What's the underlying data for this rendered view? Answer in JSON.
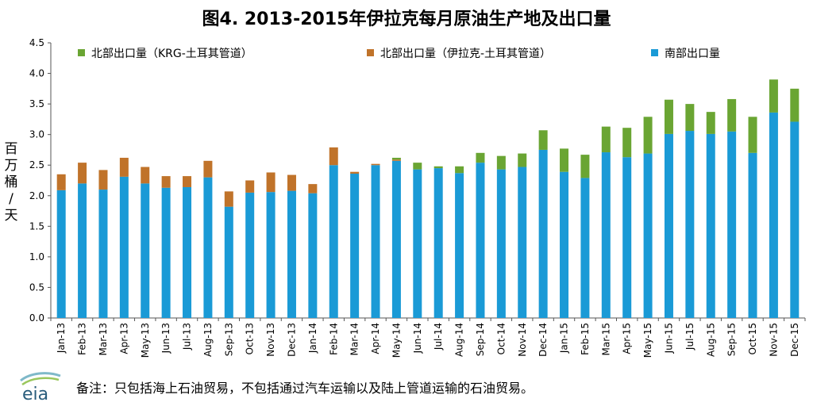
{
  "chart_data": {
    "type": "bar",
    "stacked": true,
    "title": "图4. 2013-2015年伊拉克每月原油生产地及出口量",
    "ylabel": "百万桶/天",
    "ylabel_chars": [
      "百",
      "万",
      "桶",
      "/",
      "天"
    ],
    "ylim": [
      0,
      4.5
    ],
    "yticks": [
      "0.0",
      "0.5",
      "1.0",
      "1.5",
      "2.0",
      "2.5",
      "3.0",
      "3.5",
      "4.0",
      "4.5"
    ],
    "grid": false,
    "legend_position": "top",
    "categories": [
      "Jan-13",
      "Feb-13",
      "Mar-13",
      "Apr-13",
      "May-13",
      "Jun-13",
      "Jul-13",
      "Aug-13",
      "Sep-13",
      "Oct-13",
      "Nov-13",
      "Dec-13",
      "Jan-14",
      "Feb-14",
      "Mar-14",
      "Apr-14",
      "May-14",
      "Jun-14",
      "Jul-14",
      "Aug-14",
      "Sep-14",
      "Oct-14",
      "Nov-14",
      "Dec-14",
      "Jan-15",
      "Feb-15",
      "Mar-15",
      "Apr-15",
      "May-15",
      "Jun-15",
      "Jul-15",
      "Aug-15",
      "Sep-15",
      "Oct-15",
      "Nov-15",
      "Dec-15"
    ],
    "series": [
      {
        "name": "南部出口量",
        "color": "#1a9ad6",
        "values": [
          2.09,
          2.2,
          2.1,
          2.31,
          2.2,
          2.13,
          2.14,
          2.3,
          1.82,
          2.05,
          2.06,
          2.08,
          2.04,
          2.5,
          2.36,
          2.5,
          2.57,
          2.43,
          2.45,
          2.37,
          2.54,
          2.43,
          2.47,
          2.75,
          2.39,
          2.29,
          2.71,
          2.63,
          2.69,
          3.01,
          3.06,
          3.01,
          3.05,
          2.7,
          3.36,
          3.21
        ]
      },
      {
        "name": "北部出口量（伊拉克-土耳其管道）",
        "color": "#c0732a",
        "values": [
          0.26,
          0.34,
          0.32,
          0.31,
          0.27,
          0.19,
          0.18,
          0.27,
          0.25,
          0.2,
          0.32,
          0.26,
          0.15,
          0.29,
          0.03,
          0.02,
          0.02,
          0,
          0,
          0,
          0,
          0,
          0,
          0,
          0,
          0,
          0,
          0,
          0,
          0,
          0,
          0,
          0,
          0,
          0,
          0
        ]
      },
      {
        "name": "北部出口量（KRG-土耳其管道）",
        "color": "#6aa533",
        "values": [
          0,
          0,
          0,
          0,
          0,
          0,
          0,
          0,
          0,
          0,
          0,
          0,
          0,
          0,
          0,
          0,
          0.03,
          0.11,
          0.03,
          0.11,
          0.16,
          0.22,
          0.22,
          0.32,
          0.38,
          0.38,
          0.42,
          0.48,
          0.6,
          0.56,
          0.44,
          0.36,
          0.53,
          0.59,
          0.54,
          0.54
        ]
      }
    ]
  },
  "footer": {
    "note": "备注：只包括海上石油贸易，不包括通过汽车运输以及陆上管道运输的石油贸易。",
    "logo_text": "eia"
  }
}
